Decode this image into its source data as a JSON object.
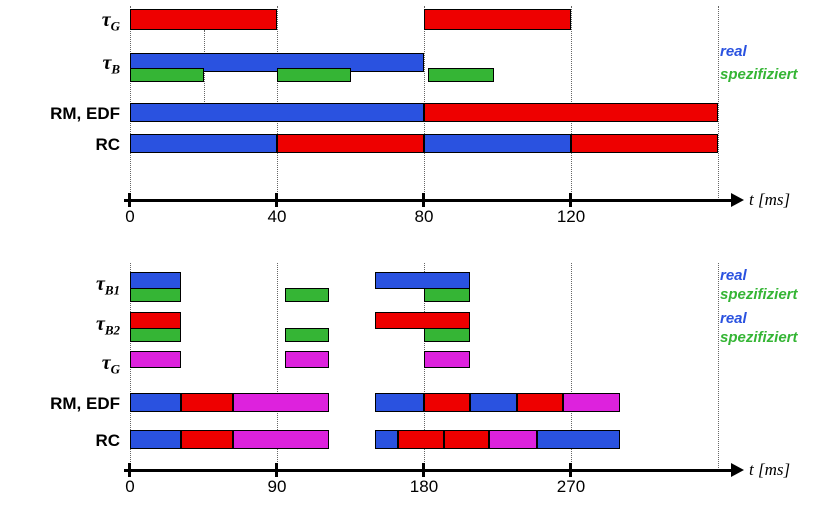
{
  "colors": {
    "red": "#ee0000",
    "blue": "#2a52e0",
    "green": "#35b535",
    "magenta": "#dd22dd",
    "axis": "#000000"
  },
  "chart_data": [
    {
      "type": "gantt",
      "name": "top-schedule",
      "unit": "ms",
      "axis": {
        "label": "t [ms]",
        "ticks": [
          0,
          40,
          80,
          120
        ],
        "max": 160
      },
      "gridlines": [
        0,
        40,
        80,
        120,
        160
      ],
      "rows": [
        {
          "id": "tau_G",
          "label": {
            "base": "τ",
            "sub": "G"
          },
          "lanes": [
            {
              "name": "real",
              "intervals": [
                [
                  0,
                  40,
                  "red"
                ],
                [
                  80,
                  120,
                  "red"
                ]
              ]
            }
          ]
        },
        {
          "id": "tau_B",
          "label": {
            "base": "τ",
            "sub": "B"
          },
          "lanes": [
            {
              "name": "real",
              "intervals": [
                [
                  0,
                  80,
                  "blue"
                ]
              ]
            },
            {
              "name": "spezifiziert",
              "intervals": [
                [
                  0,
                  20,
                  "green"
                ],
                [
                  40,
                  60,
                  "green"
                ],
                [
                  81,
                  99,
                  "green"
                ]
              ]
            }
          ]
        },
        {
          "id": "rm-edf",
          "label": {
            "base": "RM, EDF"
          },
          "lanes": [
            {
              "name": "schedule",
              "intervals": [
                [
                  0,
                  80,
                  "blue"
                ],
                [
                  80,
                  160,
                  "red"
                ]
              ]
            }
          ]
        },
        {
          "id": "rc",
          "label": {
            "base": "RC"
          },
          "lanes": [
            {
              "name": "schedule",
              "intervals": [
                [
                  0,
                  40,
                  "blue"
                ],
                [
                  40,
                  80,
                  "red"
                ],
                [
                  80,
                  120,
                  "blue"
                ],
                [
                  120,
                  160,
                  "red"
                ]
              ]
            }
          ]
        }
      ],
      "legend": [
        {
          "text": "real",
          "color": "blue"
        },
        {
          "text": "spezifiziert",
          "color": "green"
        }
      ]
    },
    {
      "type": "gantt",
      "name": "bottom-schedule",
      "unit": "ms",
      "axis": {
        "label": "t [ms]",
        "ticks": [
          0,
          90,
          180,
          270
        ],
        "max": 360
      },
      "gridlines": [
        0,
        90,
        180,
        270,
        360
      ],
      "rows": [
        {
          "id": "tau_B1",
          "label": {
            "base": "τ",
            "sub": "B1"
          },
          "lanes": [
            {
              "name": "real",
              "intervals": [
                [
                  0,
                  31,
                  "blue"
                ],
                [
                  150,
                  208,
                  "blue"
                ]
              ]
            },
            {
              "name": "spezifiziert",
              "intervals": [
                [
                  0,
                  31,
                  "green"
                ],
                [
                  95,
                  122,
                  "green"
                ],
                [
                  180,
                  208,
                  "green"
                ]
              ]
            }
          ]
        },
        {
          "id": "tau_B2",
          "label": {
            "base": "τ",
            "sub": "B2"
          },
          "lanes": [
            {
              "name": "real",
              "intervals": [
                [
                  0,
                  31,
                  "red"
                ],
                [
                  150,
                  208,
                  "red"
                ]
              ]
            },
            {
              "name": "spezifiziert",
              "intervals": [
                [
                  0,
                  31,
                  "green"
                ],
                [
                  95,
                  122,
                  "green"
                ],
                [
                  180,
                  208,
                  "green"
                ]
              ]
            }
          ]
        },
        {
          "id": "tau_G",
          "label": {
            "base": "τ",
            "sub": "G"
          },
          "lanes": [
            {
              "name": "real",
              "intervals": [
                [
                  0,
                  31,
                  "magenta"
                ],
                [
                  95,
                  122,
                  "magenta"
                ],
                [
                  180,
                  208,
                  "magenta"
                ]
              ]
            }
          ]
        },
        {
          "id": "rm-edf",
          "label": {
            "base": "RM, EDF"
          },
          "lanes": [
            {
              "name": "schedule",
              "intervals": [
                [
                  0,
                  31,
                  "blue"
                ],
                [
                  31,
                  63,
                  "red"
                ],
                [
                  63,
                  122,
                  "magenta"
                ],
                [
                  150,
                  180,
                  "blue"
                ],
                [
                  180,
                  208,
                  "red"
                ],
                [
                  208,
                  237,
                  "blue"
                ],
                [
                  237,
                  265,
                  "red"
                ],
                [
                  265,
                  300,
                  "magenta"
                ]
              ]
            }
          ]
        },
        {
          "id": "rc",
          "label": {
            "base": "RC"
          },
          "lanes": [
            {
              "name": "schedule",
              "intervals": [
                [
                  0,
                  31,
                  "blue"
                ],
                [
                  31,
                  63,
                  "red"
                ],
                [
                  63,
                  122,
                  "magenta"
                ],
                [
                  150,
                  164,
                  "blue"
                ],
                [
                  164,
                  192,
                  "red"
                ],
                [
                  192,
                  220,
                  "red"
                ],
                [
                  220,
                  249,
                  "magenta"
                ],
                [
                  249,
                  300,
                  "blue"
                ]
              ]
            }
          ]
        }
      ],
      "legend": [
        {
          "text": "real",
          "color": "blue"
        },
        {
          "text": "spezifiziert",
          "color": "green"
        },
        {
          "text": "real",
          "color": "blue"
        },
        {
          "text": "spezifiziert",
          "color": "green"
        }
      ]
    }
  ]
}
